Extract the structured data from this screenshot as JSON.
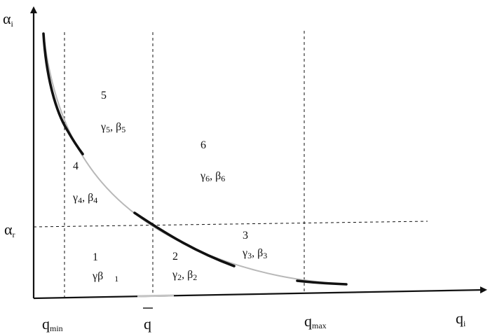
{
  "axes": {
    "y_label": "α",
    "y_label_sub": "i",
    "x_label": "q",
    "x_label_sub": "i"
  },
  "ticks": {
    "q_min": "q",
    "q_min_sub": "min",
    "q_bar": "q",
    "q_max": "q",
    "q_max_sub": "max",
    "alpha_r": "α",
    "alpha_r_sub": "r"
  },
  "regions": [
    {
      "number": "1",
      "g": "γβ",
      "g_sub": "",
      "b": "",
      "b_sub": "1"
    },
    {
      "number": "2",
      "g": "γ",
      "g_sub": "2",
      "b": "β",
      "b_sub": "2"
    },
    {
      "number": "3",
      "g": "γ",
      "g_sub": "3",
      "b": "β",
      "b_sub": "3"
    },
    {
      "number": "4",
      "g": "γ",
      "g_sub": "4",
      "b": "β",
      "b_sub": "4"
    },
    {
      "number": "5",
      "g": "γ",
      "g_sub": "5",
      "b": "β",
      "b_sub": "5"
    },
    {
      "number": "6",
      "g": "γ",
      "g_sub": "6",
      "b": "β",
      "b_sub": "6"
    }
  ],
  "colors": {
    "line": "#111111",
    "faded": "#b8b8b8"
  }
}
